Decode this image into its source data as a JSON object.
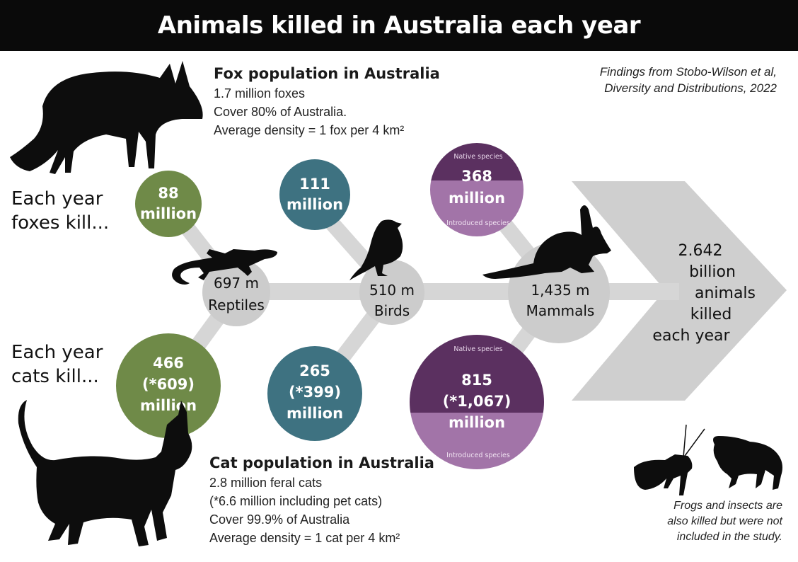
{
  "title": "Animals killed in Australia each year",
  "source": [
    "Findings from Stobo-Wilson et al,",
    "Diversity and Distributions, 2022"
  ],
  "fox_info": {
    "heading": "Fox population in Australia",
    "lines": [
      "1.7 million foxes",
      "Cover 80% of Australia.",
      "Average density = 1 fox per 4 km²"
    ]
  },
  "cat_info": {
    "heading": "Cat population in Australia",
    "lines": [
      "2.8 million feral cats",
      "(*6.6 million including pet cats)",
      "Cover 99.9% of Australia",
      "Average density = 1 cat per 4 km²"
    ]
  },
  "foxes_label": [
    "Each year",
    "foxes kill..."
  ],
  "cats_label": [
    "Each year",
    "cats kill..."
  ],
  "nodes": {
    "reptiles": {
      "value": "697 m",
      "label": "Reptiles"
    },
    "birds": {
      "value": "510 m",
      "label": "Birds"
    },
    "mammals": {
      "value": "1,435 m",
      "label": "Mammals"
    }
  },
  "fox_kills": {
    "reptiles": [
      "88",
      "million"
    ],
    "birds": [
      "111",
      "million"
    ],
    "mammals": [
      "368",
      "million"
    ],
    "mammals_top": "Native species",
    "mammals_bottom": "Introduced species"
  },
  "cat_kills": {
    "reptiles": [
      "466",
      "(*609)",
      "million"
    ],
    "birds": [
      "265",
      "(*399)",
      "million"
    ],
    "mammals": [
      "815",
      "(*1,067)",
      "million"
    ],
    "mammals_top": "Native species",
    "mammals_bottom": "Introduced species"
  },
  "total": [
    "2.642",
    "billion",
    "animals",
    "killed",
    "each year"
  ],
  "note": [
    "Frogs and insects are",
    "also killed but were not",
    "included in the study."
  ],
  "colors": {
    "title_bg": "#0a0a0a",
    "reptile_green": "#6f8a48",
    "bird_teal": "#3e7281",
    "native_purple": "#5b3060",
    "introduced_purple": "#a274a8",
    "spine_gray": "#d6d6d6",
    "node_gray": "#cccccc",
    "arrow_gray": "#cfcfcf"
  },
  "icons": [
    "fox-silhouette-icon",
    "cat-silhouette-icon",
    "lizard-icon",
    "bird-icon",
    "bilby-icon",
    "grasshopper-icon",
    "frog-icon"
  ]
}
